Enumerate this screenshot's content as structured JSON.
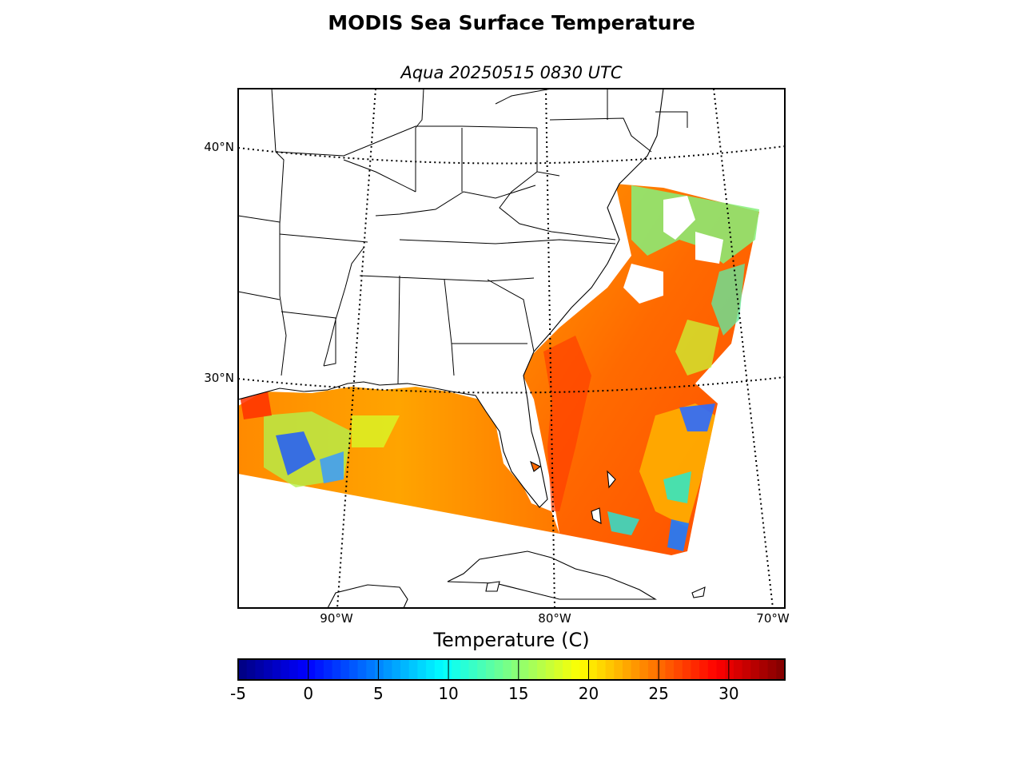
{
  "title": "MODIS Sea Surface Temperature",
  "subtitle": "Aqua 20250515 0830 UTC",
  "map": {
    "projection": "lambert-conformal",
    "lat_labels": [
      "40°N",
      "30°N"
    ],
    "lon_labels": [
      "90°W",
      "80°W",
      "70°W"
    ],
    "graticule": "dotted",
    "coastline_color": "#000000",
    "missing_data": "cloud (white)"
  },
  "colorbar": {
    "title": "Temperature (C)",
    "min": -5,
    "max": 34,
    "colormap": "jet",
    "ticks": [
      "-5",
      "0",
      "5",
      "10",
      "15",
      "20",
      "25",
      "30"
    ],
    "tick_values": [
      -5,
      0,
      5,
      10,
      15,
      20,
      25,
      30
    ],
    "dominant_sst_range": [
      24,
      29
    ]
  }
}
